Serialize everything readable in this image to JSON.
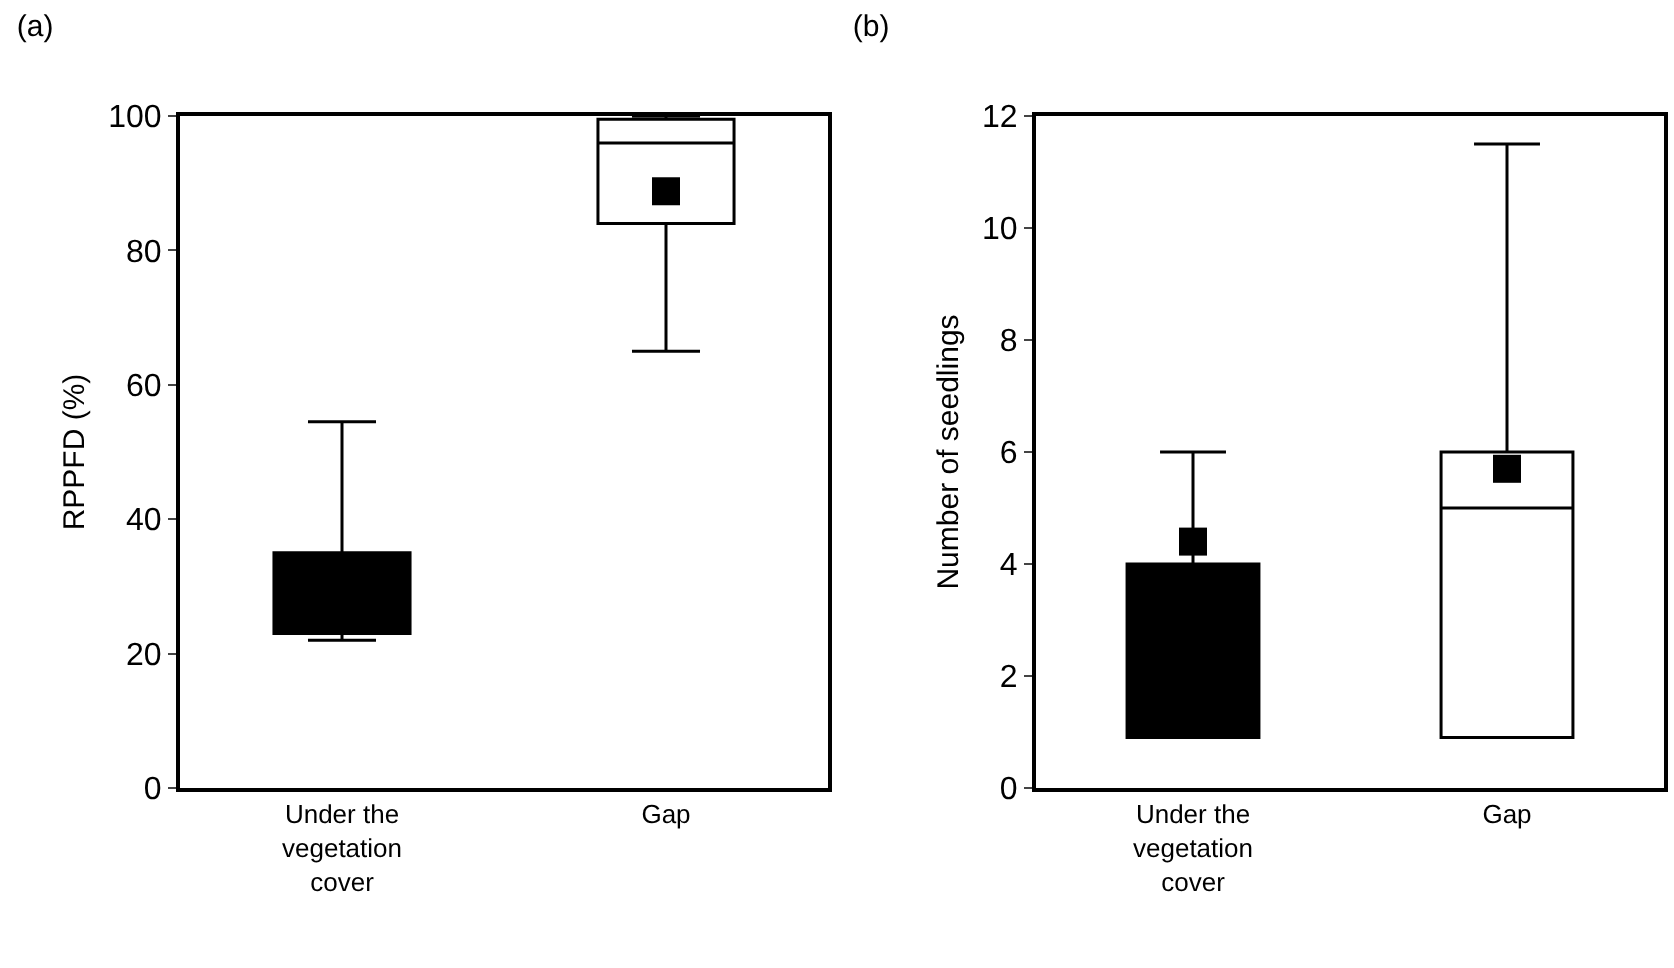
{
  "chart_data": [
    {
      "type": "box",
      "title": "(a)",
      "ylabel": "RPPFD (%)",
      "categories": [
        "Under the\nvegetation\ncover",
        "Gap"
      ],
      "colors": [
        "#000000",
        "#ffffff"
      ],
      "marker": "square",
      "grid": false,
      "boxes": [
        {
          "low": 22,
          "q1": 23,
          "median": 30,
          "q3": 35,
          "high": 54.5
        },
        {
          "low": 65,
          "q1": 84,
          "median": 96,
          "q3": 99.5,
          "high": 100,
          "mean": 88.8
        }
      ],
      "ylim": [
        0,
        100
      ],
      "yticks": [
        0,
        20,
        40,
        60,
        80,
        100
      ]
    },
    {
      "type": "box",
      "title": "(b)",
      "ylabel": "Number of seedlings",
      "categories": [
        "Under the\nvegetation\ncover",
        "Gap"
      ],
      "colors": [
        "#000000",
        "#ffffff"
      ],
      "marker": "square",
      "grid": false,
      "boxes": [
        {
          "low": 0.9,
          "q1": 0.9,
          "median": 3,
          "q3": 4,
          "high": 6,
          "mean": 4.4
        },
        {
          "low": 0.9,
          "q1": 0.9,
          "median": 5,
          "q3": 6,
          "high": 11.5,
          "mean": 5.7
        }
      ],
      "ylim": [
        0,
        12
      ],
      "yticks": [
        0,
        2,
        4,
        6,
        8,
        10,
        12
      ]
    }
  ]
}
